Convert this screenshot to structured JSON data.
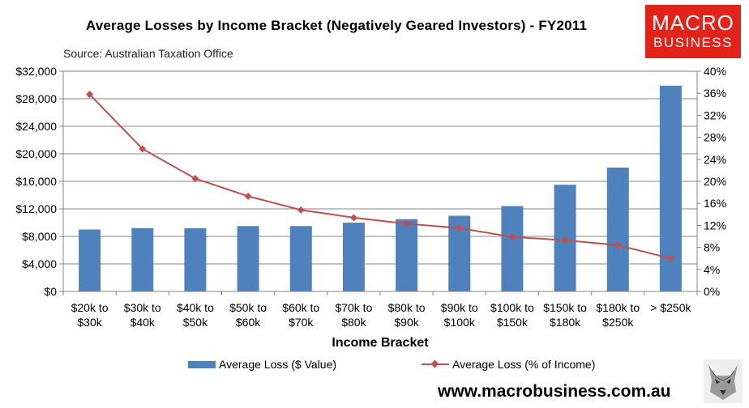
{
  "title": "Average Losses by Income Bracket (Negatively Geared Investors) - FY2011",
  "source": "Source: Australian Taxation Office",
  "logo": {
    "line1": "MACRO",
    "line2": "BUSINESS"
  },
  "website": "www.macrobusiness.com.au",
  "colors": {
    "bar": "#4f81bd",
    "line": "#c0504d",
    "logo": "#e2231a"
  },
  "chart_data": {
    "type": "bar",
    "title": "Average Losses by Income Bracket (Negatively Geared Investors) - FY2011",
    "xlabel": "Income Bracket",
    "categories": [
      [
        "$20k to",
        "$30k"
      ],
      [
        "$30k to",
        "$40k"
      ],
      [
        "$40k to",
        "$50k"
      ],
      [
        "$50k to",
        "$60k"
      ],
      [
        "$60k to",
        "$70k"
      ],
      [
        "$70k to",
        "$80k"
      ],
      [
        "$80k to",
        "$90k"
      ],
      [
        "$90k to",
        "$100k"
      ],
      [
        "$100k to",
        "$150k"
      ],
      [
        "$150k to",
        "$180k"
      ],
      [
        "$180k to",
        "$250k"
      ],
      [
        "> $250k",
        ""
      ]
    ],
    "y_left": {
      "ylim": [
        0,
        32000
      ],
      "ticks": [
        0,
        4000,
        8000,
        12000,
        16000,
        20000,
        24000,
        28000,
        32000
      ],
      "tick_labels": [
        "$0",
        "$4,000",
        "$8,000",
        "$12,000",
        "$16,000",
        "$20,000",
        "$24,000",
        "$28,000",
        "$32,000"
      ]
    },
    "y_right": {
      "ylim": [
        0,
        40
      ],
      "ticks": [
        0,
        4,
        8,
        12,
        16,
        20,
        24,
        28,
        32,
        36,
        40
      ],
      "tick_labels": [
        "0%",
        "4%",
        "8%",
        "12%",
        "16%",
        "20%",
        "24%",
        "28%",
        "32%",
        "36%",
        "40%"
      ]
    },
    "series": [
      {
        "name": "Average Loss ($ Value)",
        "type": "bar",
        "axis": "left",
        "values": [
          9000,
          9200,
          9200,
          9500,
          9500,
          10000,
          10500,
          11000,
          12400,
          15500,
          18000,
          29900
        ]
      },
      {
        "name": "Average Loss (% of Income)",
        "type": "line",
        "axis": "right",
        "values": [
          35.8,
          25.9,
          20.5,
          17.3,
          14.8,
          13.4,
          12.3,
          11.5,
          9.9,
          9.3,
          8.4,
          6.0
        ]
      }
    ],
    "grid": true,
    "legend": "bottom"
  }
}
